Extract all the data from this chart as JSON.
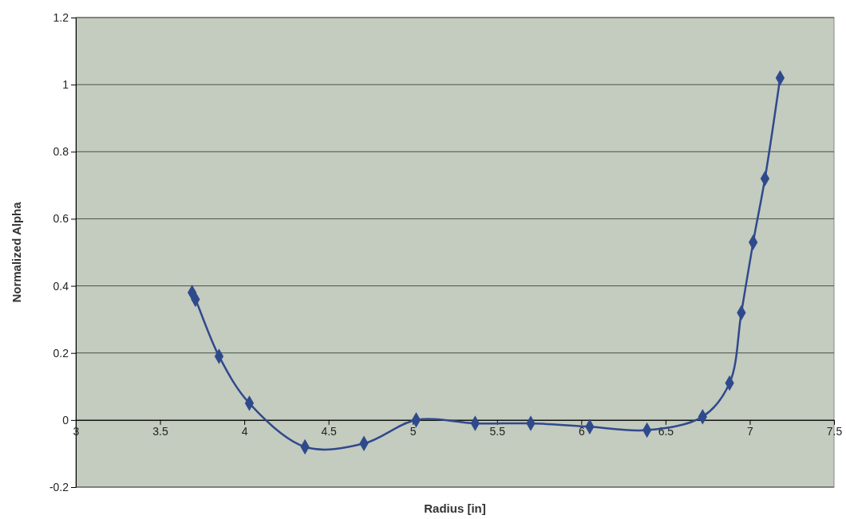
{
  "chart_data": {
    "type": "line",
    "xlabel": "Radius [in]",
    "ylabel": "Normalized Alpha",
    "x": [
      3.69,
      3.71,
      3.85,
      4.03,
      4.36,
      4.71,
      5.02,
      5.37,
      5.7,
      6.05,
      6.39,
      6.72,
      6.88,
      6.95,
      7.02,
      7.09,
      7.18
    ],
    "series": [
      {
        "color": "#2f4a8c",
        "values": [
          0.38,
          0.36,
          0.19,
          0.05,
          -0.08,
          -0.07,
          0.0,
          -0.01,
          -0.01,
          -0.02,
          -0.03,
          0.01,
          0.11,
          0.32,
          0.53,
          0.72,
          1.02
        ]
      }
    ],
    "xlim": [
      3,
      7.5
    ],
    "xticks": [
      3,
      3.5,
      4,
      4.5,
      5,
      5.5,
      6,
      6.5,
      7,
      7.5
    ],
    "ylim": [
      -0.2,
      1.2
    ],
    "yticks": [
      -0.2,
      0,
      0.2,
      0.4,
      0.6,
      0.8,
      1,
      1.2
    ],
    "grid": "y",
    "marker": "diamond",
    "line_style": "solid"
  }
}
